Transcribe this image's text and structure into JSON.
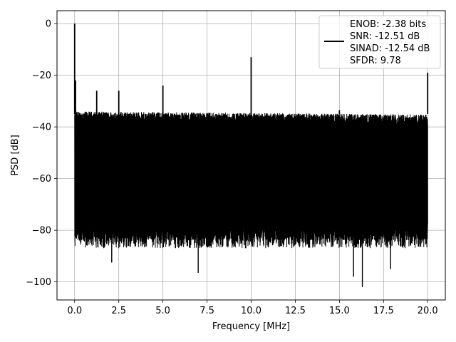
{
  "chart_data": {
    "type": "line",
    "title": "",
    "xlabel": "Frequency [MHz]",
    "ylabel": "PSD [dB]",
    "xlim": [
      -1.0,
      21.0
    ],
    "ylim": [
      -107,
      5
    ],
    "xticks": [
      0.0,
      2.5,
      5.0,
      7.5,
      10.0,
      12.5,
      15.0,
      17.5,
      20.0
    ],
    "xtick_labels": [
      "0.0",
      "2.5",
      "5.0",
      "7.5",
      "10.0",
      "12.5",
      "15.0",
      "17.5",
      "20.0"
    ],
    "yticks": [
      0,
      -20,
      -40,
      -60,
      -80,
      -100
    ],
    "ytick_labels": [
      "0",
      "−20",
      "−40",
      "−60",
      "−80",
      "−100"
    ],
    "grid": true,
    "legend_position": "top-right",
    "series": [
      {
        "color": "#000000",
        "noise_floor_top_db": -37,
        "noise_floor_bottom_db": -80,
        "spikes": [
          {
            "x": 0.0,
            "y": 0
          },
          {
            "x": 0.05,
            "y": -22
          },
          {
            "x": 1.25,
            "y": -26
          },
          {
            "x": 2.5,
            "y": -26
          },
          {
            "x": 5.0,
            "y": -24
          },
          {
            "x": 10.0,
            "y": -13
          },
          {
            "x": 15.0,
            "y": -33.5
          },
          {
            "x": 20.0,
            "y": -19
          }
        ],
        "dips": [
          {
            "x": 2.1,
            "y": -92.5
          },
          {
            "x": 7.0,
            "y": -96.5
          },
          {
            "x": 15.8,
            "y": -98
          },
          {
            "x": 16.3,
            "y": -102
          },
          {
            "x": 17.9,
            "y": -95
          }
        ]
      }
    ],
    "legend": {
      "lines": [
        "ENOB: -2.38 bits",
        "SNR: -12.51 dB",
        "SINAD: -12.54 dB",
        "SFDR: 9.78"
      ]
    }
  }
}
